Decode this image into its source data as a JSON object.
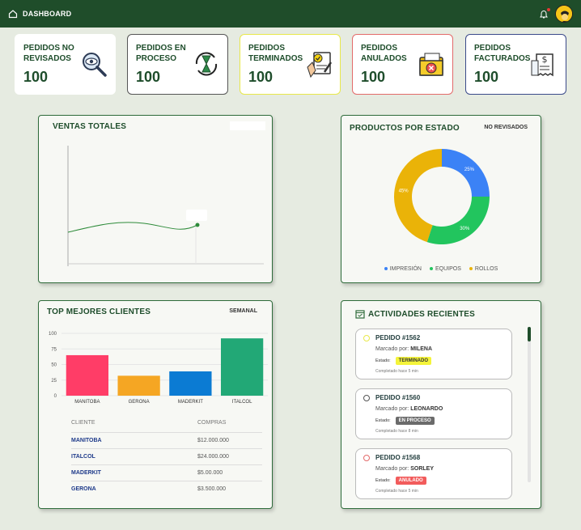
{
  "header": {
    "title": "DASHBOARD"
  },
  "stats": [
    {
      "label": "PEDIDOS NO REVISADOS",
      "value": "100",
      "border": "#ffffff",
      "icon": "magnifier-eye-icon"
    },
    {
      "label": "PEDIDOS EN PROCESO",
      "value": "100",
      "border": "#555555",
      "icon": "hourglass-cycle-icon"
    },
    {
      "label": "PEDIDOS TERMINADOS",
      "value": "100",
      "border": "#e8e84a",
      "icon": "document-check-icon"
    },
    {
      "label": "PEDIDOS ANULADOS",
      "value": "100",
      "border": "#e36a6a",
      "icon": "folder-cancel-icon"
    },
    {
      "label": "PEDIDOS FACTURADOS",
      "value": "100",
      "border": "#3b4a8a",
      "icon": "invoice-icon"
    }
  ],
  "ventas": {
    "title": "VENTAS TOTALES"
  },
  "productos": {
    "title": "PRODUCTOS POR ESTADO",
    "filter": "NO REVISADOS",
    "chart_data": {
      "type": "pie",
      "variant": "donut",
      "slices": [
        {
          "label": "IMPRESIÓN",
          "value": 25,
          "text": "25%",
          "color": "#3b82f6"
        },
        {
          "label": "EQUIPOS",
          "value": 30,
          "text": "30%",
          "color": "#22c55e"
        },
        {
          "label": "ROLLOS",
          "value": 45,
          "text": "45%",
          "color": "#eab308"
        }
      ]
    }
  },
  "clientes": {
    "title": "TOP MEJORES CLIENTES",
    "period": "SEMANAL",
    "chart_data": {
      "type": "bar",
      "categories": [
        "MANITOBA",
        "GERONA",
        "MADERKIT",
        "ITALCOL"
      ],
      "values": [
        65,
        32,
        39,
        92
      ],
      "colors": [
        "#ff3d67",
        "#f5a623",
        "#0b7bd3",
        "#22a876"
      ],
      "yticks": [
        0,
        25,
        50,
        75,
        100
      ],
      "ylim": [
        0,
        100
      ]
    },
    "table": {
      "headers": [
        "CLIENTE",
        "COMPRAS"
      ],
      "rows": [
        [
          "MANITOBA",
          "$12.000.000"
        ],
        [
          "ITALCOL",
          "$24.000.000"
        ],
        [
          "MADERKIT",
          "$5.00.000"
        ],
        [
          "GERONA",
          "$3.500.000"
        ]
      ]
    }
  },
  "actividades": {
    "title": "ACTIVIDADES RECIENTES",
    "marked_by_label": "Marcado por:",
    "state_label": "Estado:",
    "items": [
      {
        "order": "PEDIDO #1562",
        "by": "MILENA",
        "state": "TERMINADO",
        "badge_bg": "#f4f43a",
        "badge_fg": "#333333",
        "dot": "#e8e84a",
        "time": "Completado hace 5 min"
      },
      {
        "order": "PEDIDO #1560",
        "by": "LEONARDO",
        "state": "EN PROCESO",
        "badge_bg": "#6b6b6b",
        "badge_fg": "#ffffff",
        "dot": "#555555",
        "time": "Completado hace 8 min"
      },
      {
        "order": "PEDIDO #1568",
        "by": "SORLEY",
        "state": "ANULADO",
        "badge_bg": "#f25c5c",
        "badge_fg": "#ffffff",
        "dot": "#e36a6a",
        "time": "Completado hace 5 min"
      }
    ]
  }
}
